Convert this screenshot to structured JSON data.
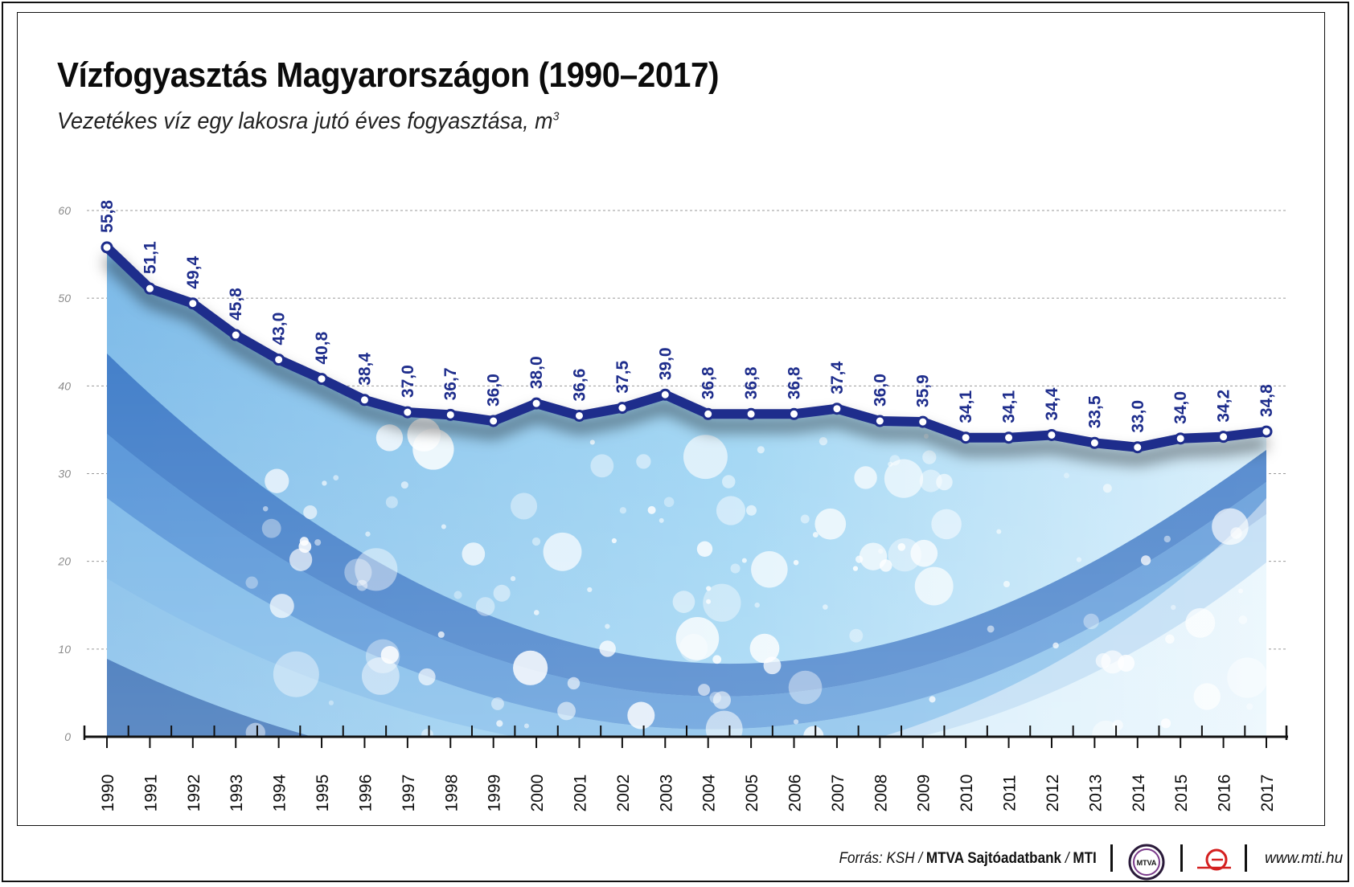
{
  "header": {
    "title": "Vízfogyasztás Magyarországon (1990–2017)",
    "subtitle": "Vezetékes víz egy lakosra jutó éves fogyasztása, m",
    "subtitle_sup": "3"
  },
  "footer": {
    "source_prefix": "Forrás: KSH / ",
    "source_bold": "MTVA Sajtóadatbank",
    "source_mid": " / ",
    "source_end": "MTI",
    "logo_mtva_text": "MTVA",
    "website": "www.mti.hu"
  },
  "colors": {
    "line": "#1e2d8c",
    "label": "#1e2d8c",
    "area_light": "#8ecbef",
    "area_dark": "#1f5bab"
  },
  "chart_data": {
    "type": "line",
    "title": "Vízfogyasztás Magyarországon (1990–2017)",
    "subtitle": "Vezetékes víz egy lakosra jutó éves fogyasztása, m3",
    "xlabel": "",
    "ylabel": "",
    "ylim": [
      0,
      60
    ],
    "yticks": [
      "0",
      "10",
      "20",
      "30",
      "40",
      "50",
      "60"
    ],
    "grid": true,
    "categories": [
      "1990",
      "1991",
      "1992",
      "1993",
      "1994",
      "1995",
      "1996",
      "1997",
      "1998",
      "1999",
      "2000",
      "2001",
      "2002",
      "2003",
      "2004",
      "2005",
      "2006",
      "2007",
      "2008",
      "2009",
      "2010",
      "2011",
      "2012",
      "2013",
      "2014",
      "2015",
      "2016",
      "2017"
    ],
    "values": [
      55.8,
      51.1,
      49.4,
      45.8,
      43.0,
      40.8,
      38.4,
      37.0,
      36.7,
      36.0,
      38.0,
      36.6,
      37.5,
      39.0,
      36.8,
      36.8,
      36.8,
      37.4,
      36.0,
      35.9,
      34.1,
      34.1,
      34.4,
      33.5,
      33.0,
      34.0,
      34.2,
      34.8
    ],
    "labels": [
      "55,8",
      "51,1",
      "49,4",
      "45,8",
      "43,0",
      "40,8",
      "38,4",
      "37,0",
      "36,7",
      "36,0",
      "38,0",
      "36,6",
      "37,5",
      "39,0",
      "36,8",
      "36,8",
      "36,8",
      "37,4",
      "36,0",
      "35,9",
      "34,1",
      "34,1",
      "34,4",
      "33,5",
      "33,0",
      "34,0",
      "34,2",
      "34,8"
    ]
  }
}
